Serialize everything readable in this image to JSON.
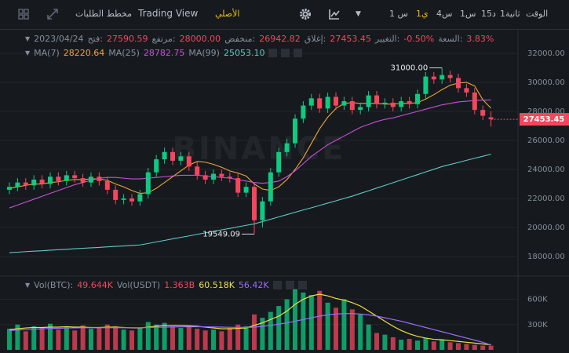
{
  "toolbar": {
    "intervals": [
      "الوقت",
      "1ثانية",
      "15د",
      "1س",
      "4س",
      "1ي",
      "1 س"
    ],
    "active_interval": 5,
    "views": [
      "الأصلي",
      "Trading View",
      "مخطط الطلبات"
    ],
    "active_view": 0,
    "active_color": "#f0b90b"
  },
  "chart_data": {
    "type": "candlestick",
    "watermark": "BINANCE",
    "legend": {
      "date": "2023/04/24",
      "items": [
        {
          "label": "فتح:",
          "value": "27590.59"
        },
        {
          "label": "مرتفع:",
          "value": "28000.00"
        },
        {
          "label": "منخفض:",
          "value": "26942.82"
        },
        {
          "label": "إغلاق:",
          "value": "27453.45"
        },
        {
          "label": "التغيير:",
          "value": "-0.50%"
        },
        {
          "label": "السعة:",
          "value": "3.83%"
        }
      ]
    },
    "up_color": "#0ecb81",
    "down_color": "#f6465d",
    "open": [
      22600,
      22800,
      23100,
      22900,
      23300,
      23000,
      23500,
      23200,
      23600,
      23400,
      23100,
      23500,
      23200,
      22600,
      21900,
      22000,
      21800,
      22300,
      23800,
      24700,
      25200,
      24600,
      24900,
      24200,
      23600,
      23300,
      23700,
      23500,
      23400,
      22400,
      22800,
      20500,
      21800,
      23800,
      25200,
      25800,
      27500,
      28400,
      28900,
      28200,
      29000,
      28400,
      28700,
      28100,
      28300,
      29100,
      28500,
      28600,
      28300,
      28700,
      28500,
      29200,
      30400,
      30200,
      30500,
      30300,
      29600,
      29300,
      28100,
      27590.59
    ],
    "high": [
      23100,
      23400,
      23400,
      23600,
      23600,
      23800,
      23800,
      23900,
      23900,
      23700,
      23800,
      23800,
      23500,
      22900,
      22300,
      22300,
      22600,
      24100,
      25000,
      25500,
      25500,
      25200,
      25200,
      24500,
      23900,
      24000,
      24000,
      23800,
      23700,
      23100,
      23100,
      22100,
      24100,
      25500,
      26100,
      27800,
      28700,
      29200,
      29200,
      29300,
      29300,
      29000,
      29000,
      28600,
      29400,
      29400,
      28900,
      28900,
      29000,
      29000,
      29500,
      30700,
      30700,
      31000,
      30800,
      30600,
      29900,
      29600,
      28400,
      28000
    ],
    "low": [
      22300,
      22500,
      22600,
      22600,
      22700,
      22700,
      22900,
      22900,
      23100,
      22800,
      22800,
      22900,
      22300,
      21600,
      21600,
      21500,
      21500,
      22000,
      23500,
      24400,
      24300,
      24300,
      23900,
      23300,
      23000,
      23000,
      23200,
      23100,
      22100,
      22100,
      19549.09,
      20000,
      21500,
      23500,
      24900,
      25500,
      27200,
      28100,
      27900,
      27900,
      28100,
      28100,
      27800,
      27800,
      28000,
      28200,
      28200,
      28000,
      28000,
      28200,
      28200,
      28900,
      29900,
      29900,
      30000,
      29300,
      29000,
      27800,
      27400,
      26942.82
    ],
    "close": [
      22800,
      23100,
      22900,
      23300,
      23000,
      23500,
      23200,
      23600,
      23400,
      23100,
      23500,
      23200,
      22600,
      21900,
      22000,
      21800,
      22300,
      23800,
      24700,
      25200,
      24600,
      24900,
      24200,
      23600,
      23300,
      23700,
      23500,
      23400,
      22400,
      22800,
      20500,
      21800,
      23800,
      25200,
      25800,
      27500,
      28400,
      28900,
      28200,
      29000,
      28400,
      28700,
      28100,
      28300,
      29100,
      28500,
      28600,
      28300,
      28700,
      28500,
      29200,
      30400,
      30200,
      30500,
      30300,
      29600,
      29300,
      28100,
      27700,
      27453.45
    ],
    "ma": [
      {
        "name": "MA(7)",
        "color": "#f0a23a",
        "label": "28220.64",
        "values": [
          22700,
          22800,
          22900,
          23000,
          23000,
          23100,
          23150,
          23250,
          23300,
          23300,
          23350,
          23350,
          23250,
          23000,
          22800,
          22550,
          22350,
          22400,
          22700,
          23100,
          23500,
          23900,
          24300,
          24550,
          24500,
          24350,
          24150,
          23900,
          23750,
          23550,
          23000,
          22650,
          22550,
          22800,
          23300,
          24000,
          24800,
          25800,
          26800,
          27600,
          28200,
          28550,
          28600,
          28550,
          28550,
          28550,
          28500,
          28500,
          28550,
          28550,
          28600,
          28850,
          29150,
          29500,
          29800,
          29950,
          30000,
          29750,
          28800,
          28220.64
        ]
      },
      {
        "name": "MA(25)",
        "color": "#c94fd6",
        "label": "28782.75",
        "values": [
          21350,
          21550,
          21750,
          21950,
          22150,
          22350,
          22550,
          22750,
          22950,
          23100,
          23250,
          23400,
          23450,
          23450,
          23400,
          23350,
          23350,
          23400,
          23450,
          23500,
          23550,
          23600,
          23600,
          23600,
          23550,
          23500,
          23450,
          23400,
          23300,
          23200,
          23100,
          23050,
          23100,
          23200,
          23500,
          23900,
          24400,
          24900,
          25300,
          25700,
          26000,
          26300,
          26600,
          26900,
          27100,
          27300,
          27450,
          27550,
          27700,
          27850,
          28000,
          28150,
          28300,
          28450,
          28550,
          28650,
          28700,
          28750,
          28780,
          28782.75
        ]
      },
      {
        "name": "MA(99)",
        "color": "#5fc9c6",
        "label": "25053.10",
        "values": [
          18270,
          18300,
          18340,
          18370,
          18400,
          18440,
          18470,
          18500,
          18540,
          18570,
          18600,
          18630,
          18670,
          18700,
          18730,
          18770,
          18800,
          18900,
          19010,
          19110,
          19220,
          19320,
          19420,
          19530,
          19630,
          19740,
          19840,
          19940,
          20050,
          20150,
          20250,
          20410,
          20570,
          20730,
          20890,
          21050,
          21210,
          21360,
          21520,
          21680,
          21840,
          22000,
          22160,
          22350,
          22530,
          22720,
          22900,
          23090,
          23270,
          23460,
          23640,
          23830,
          24010,
          24200,
          24340,
          24480,
          24630,
          24770,
          24910,
          25053.1
        ]
      }
    ],
    "high_annotation": {
      "index": 53,
      "label": "31000.00"
    },
    "low_annotation": {
      "index": 30,
      "label": "19549.09"
    },
    "last_price_label": "27453.45",
    "ylim": [
      16760,
      33510
    ],
    "yticks": [
      {
        "value": 18000,
        "label": "18000.00"
      },
      {
        "value": 20000,
        "label": "20000.00"
      },
      {
        "value": 22000,
        "label": "22000.00"
      },
      {
        "value": 24000,
        "label": "24000.00"
      },
      {
        "value": 26000,
        "label": "26000.00"
      },
      {
        "value": 28000,
        "label": "28000.00"
      },
      {
        "value": 30000,
        "label": "30000.00"
      },
      {
        "value": 32000,
        "label": "32000.00"
      }
    ],
    "grid": true,
    "volume": {
      "legend": [
        {
          "label": "Vol(BTC):",
          "value": "49.644K",
          "color": "#f6465d"
        },
        {
          "label": "Vol(USDT)",
          "value": "1.363B",
          "color": "#f6465d"
        },
        {
          "label": "",
          "value": "60.518K",
          "color": "#f0e040"
        },
        {
          "label": "",
          "value": "56.42K",
          "color": "#9b6bff"
        }
      ],
      "values": [
        250,
        300,
        220,
        280,
        260,
        310,
        240,
        270,
        230,
        290,
        250,
        260,
        300,
        280,
        240,
        230,
        260,
        330,
        300,
        320,
        280,
        260,
        270,
        250,
        230,
        240,
        220,
        260,
        300,
        280,
        420,
        380,
        450,
        520,
        600,
        720,
        680,
        650,
        700,
        560,
        500,
        600,
        480,
        420,
        300,
        200,
        180,
        150,
        120,
        130,
        110,
        140,
        100,
        120,
        90,
        80,
        70,
        60,
        50,
        49.644
      ],
      "ma": [
        {
          "color": "#f0e040",
          "values": [
            240,
            250,
            260,
            265,
            265,
            270,
            270,
            275,
            270,
            270,
            265,
            265,
            270,
            270,
            265,
            260,
            260,
            270,
            280,
            290,
            290,
            290,
            285,
            280,
            270,
            260,
            250,
            250,
            255,
            260,
            290,
            320,
            360,
            400,
            460,
            540,
            600,
            640,
            660,
            640,
            610,
            590,
            560,
            520,
            460,
            400,
            340,
            280,
            230,
            190,
            160,
            140,
            125,
            120,
            110,
            100,
            90,
            80,
            70,
            60.518
          ]
        },
        {
          "color": "#9b6bff",
          "values": [
            230,
            235,
            240,
            245,
            250,
            255,
            255,
            260,
            260,
            262,
            262,
            262,
            263,
            263,
            263,
            263,
            263,
            265,
            268,
            270,
            272,
            273,
            274,
            274,
            273,
            272,
            270,
            268,
            267,
            266,
            270,
            278,
            290,
            305,
            320,
            340,
            360,
            380,
            400,
            415,
            425,
            430,
            430,
            425,
            415,
            400,
            380,
            360,
            340,
            315,
            290,
            265,
            240,
            215,
            190,
            165,
            140,
            115,
            90,
            56.42
          ]
        }
      ],
      "ylim": [
        0,
        800
      ],
      "yticks": [
        {
          "value": 300,
          "label": "300K"
        },
        {
          "value": 600,
          "label": "600K"
        }
      ]
    }
  }
}
